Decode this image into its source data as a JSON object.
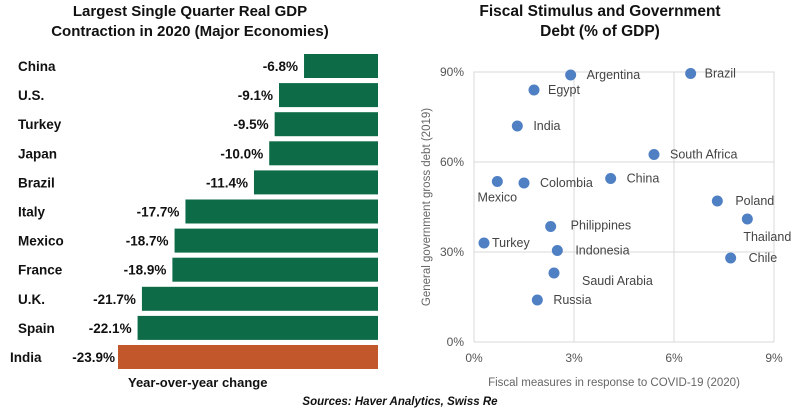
{
  "sources": "Sources: Haver Analytics, Swiss Re",
  "chart_data": [
    {
      "type": "bar",
      "orientation": "horizontal",
      "title_lines": [
        "Largest Single Quarter Real GDP",
        "Contraction in 2020 (Major Economies)"
      ],
      "xlabel": "Year-over-year change",
      "ylabel": "",
      "categories": [
        "China",
        "U.S.",
        "Turkey",
        "Japan",
        "Brazil",
        "Italy",
        "Mexico",
        "France",
        "U.K.",
        "Spain",
        "India"
      ],
      "values": [
        -6.8,
        -9.1,
        -9.5,
        -10.0,
        -11.4,
        -17.7,
        -18.7,
        -18.9,
        -21.7,
        -22.1,
        -23.9
      ],
      "value_labels": [
        "-6.8%",
        "-9.1%",
        "-9.5%",
        "-10.0%",
        "-11.4%",
        "-17.7%",
        "-18.7%",
        "-18.9%",
        "-21.7%",
        "-22.1%",
        "-23.9%"
      ],
      "colors": {
        "default": "#0d6b47",
        "highlight": "#c1572a"
      },
      "highlight": "India",
      "xlim": [
        -23.9,
        0
      ]
    },
    {
      "type": "scatter",
      "title_lines": [
        "Fiscal Stimulus and Government",
        "Debt (% of GDP)"
      ],
      "xlabel": "Fiscal measures in response to COVID-19 (2020)",
      "ylabel": "General government gross debt (2019)",
      "xlim": [
        0,
        9
      ],
      "ylim": [
        0,
        90
      ],
      "xticks": [
        "0%",
        "3%",
        "6%",
        "9%"
      ],
      "yticks": [
        "0%",
        "30%",
        "60%",
        "90%"
      ],
      "grid": true,
      "point_color": "#4f80c4",
      "points": [
        {
          "label": "Argentina",
          "x": 2.9,
          "y": 89
        },
        {
          "label": "Brazil",
          "x": 6.5,
          "y": 89.5
        },
        {
          "label": "Egypt",
          "x": 1.8,
          "y": 84
        },
        {
          "label": "India",
          "x": 1.3,
          "y": 72
        },
        {
          "label": "South Africa",
          "x": 5.4,
          "y": 62.5
        },
        {
          "label": "Mexico",
          "x": 0.7,
          "y": 53.5
        },
        {
          "label": "Colombia",
          "x": 1.5,
          "y": 53
        },
        {
          "label": "China",
          "x": 4.1,
          "y": 54.5
        },
        {
          "label": "Poland",
          "x": 7.3,
          "y": 47
        },
        {
          "label": "Thailand",
          "x": 8.2,
          "y": 41
        },
        {
          "label": "Philippines",
          "x": 2.3,
          "y": 38.5
        },
        {
          "label": "Turkey",
          "x": 0.3,
          "y": 33
        },
        {
          "label": "Indonesia",
          "x": 2.5,
          "y": 30.5
        },
        {
          "label": "Chile",
          "x": 7.7,
          "y": 28
        },
        {
          "label": "Saudi Arabia",
          "x": 2.4,
          "y": 23
        },
        {
          "label": "Russia",
          "x": 1.9,
          "y": 14
        }
      ]
    }
  ]
}
